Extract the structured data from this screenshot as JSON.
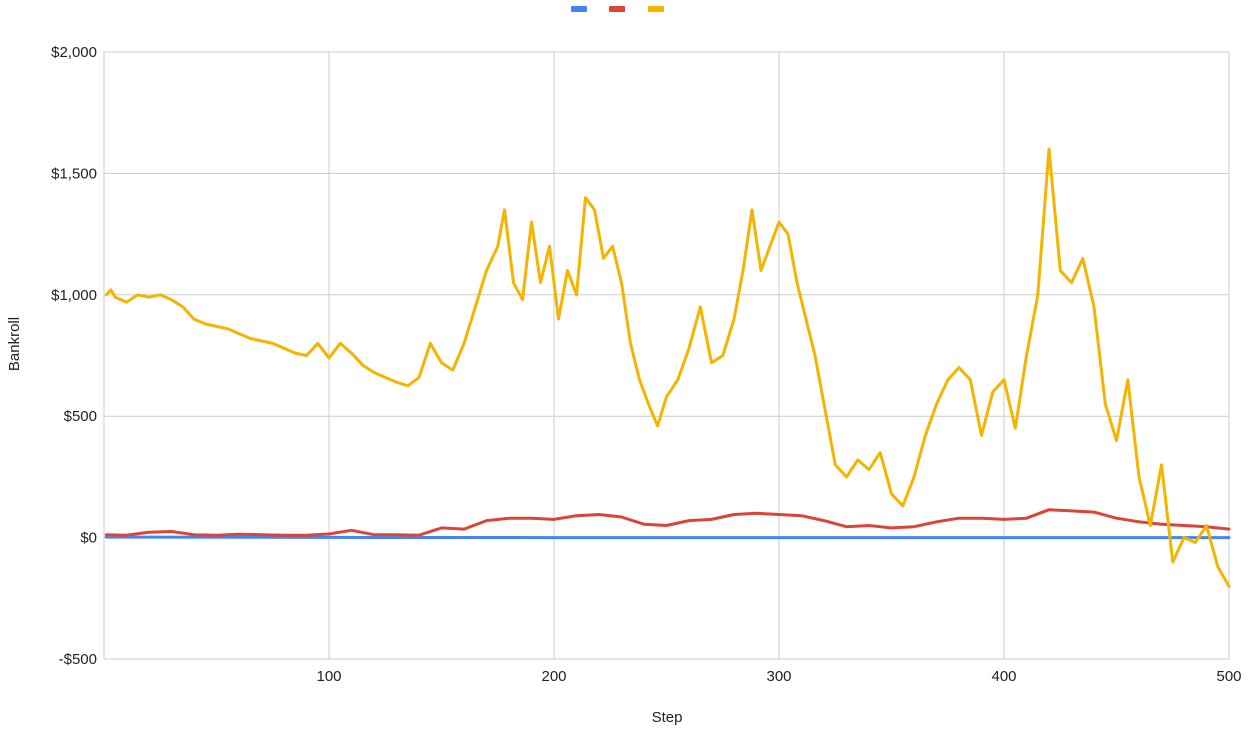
{
  "chart_data": {
    "type": "line",
    "title": "",
    "xlabel": "Step",
    "ylabel": "Bankroll",
    "xlim": [
      0,
      500
    ],
    "ylim": [
      -500,
      2000
    ],
    "x_ticks": [
      100,
      200,
      300,
      400,
      500
    ],
    "x_tick_labels": [
      "100",
      "200",
      "300",
      "400",
      "500"
    ],
    "y_ticks": [
      -500,
      0,
      500,
      1000,
      1500,
      2000
    ],
    "y_tick_labels": [
      "-$500",
      "$0",
      "$500",
      "$1,000",
      "$1,500",
      "$2,000"
    ],
    "grid": true,
    "legend_position": "top",
    "series": [
      {
        "color": "#4285f4",
        "x": [
          1,
          100,
          200,
          300,
          400,
          500
        ],
        "values": [
          2,
          1,
          0,
          0,
          0,
          0
        ]
      },
      {
        "color": "#db4437",
        "x": [
          1,
          10,
          20,
          30,
          40,
          50,
          60,
          70,
          80,
          90,
          100,
          110,
          120,
          130,
          140,
          150,
          160,
          170,
          180,
          190,
          200,
          210,
          220,
          230,
          240,
          250,
          260,
          270,
          280,
          290,
          300,
          310,
          320,
          330,
          340,
          350,
          360,
          370,
          380,
          390,
          400,
          410,
          420,
          430,
          440,
          450,
          460,
          470,
          480,
          490,
          500
        ],
        "values": [
          12,
          10,
          22,
          25,
          12,
          10,
          14,
          12,
          10,
          10,
          15,
          30,
          12,
          12,
          10,
          40,
          35,
          70,
          80,
          80,
          75,
          90,
          95,
          85,
          55,
          50,
          70,
          75,
          95,
          100,
          95,
          90,
          70,
          45,
          50,
          40,
          45,
          65,
          80,
          80,
          75,
          80,
          115,
          110,
          105,
          80,
          65,
          55,
          50,
          45,
          35
        ]
      },
      {
        "color": "#f4b400",
        "x": [
          1,
          3,
          5,
          10,
          15,
          20,
          25,
          30,
          35,
          40,
          45,
          50,
          55,
          60,
          65,
          70,
          75,
          80,
          85,
          90,
          95,
          100,
          105,
          110,
          115,
          120,
          125,
          130,
          135,
          140,
          145,
          150,
          155,
          160,
          165,
          170,
          175,
          178,
          182,
          186,
          190,
          194,
          198,
          202,
          206,
          210,
          214,
          218,
          222,
          226,
          230,
          234,
          238,
          242,
          246,
          250,
          255,
          260,
          265,
          270,
          275,
          280,
          284,
          288,
          292,
          296,
          300,
          304,
          308,
          312,
          316,
          320,
          325,
          330,
          335,
          340,
          345,
          350,
          355,
          360,
          365,
          370,
          375,
          380,
          385,
          390,
          395,
          400,
          405,
          410,
          415,
          420,
          425,
          430,
          435,
          440,
          445,
          450,
          455,
          460,
          465,
          470,
          475,
          480,
          485,
          490,
          495,
          500
        ],
        "values": [
          1000,
          1020,
          990,
          970,
          1000,
          990,
          1000,
          980,
          950,
          900,
          880,
          870,
          860,
          840,
          820,
          810,
          800,
          780,
          760,
          750,
          800,
          740,
          800,
          760,
          710,
          680,
          660,
          640,
          625,
          660,
          800,
          720,
          690,
          800,
          950,
          1100,
          1200,
          1350,
          1050,
          980,
          1300,
          1050,
          1200,
          900,
          1100,
          1000,
          1400,
          1350,
          1150,
          1200,
          1050,
          800,
          650,
          550,
          460,
          580,
          650,
          780,
          950,
          720,
          750,
          900,
          1100,
          1350,
          1100,
          1200,
          1300,
          1250,
          1050,
          900,
          750,
          550,
          300,
          250,
          320,
          280,
          350,
          180,
          130,
          250,
          420,
          550,
          650,
          700,
          650,
          420,
          600,
          650,
          450,
          750,
          1000,
          1600,
          1100,
          1050,
          1150,
          950,
          550,
          400,
          650,
          250,
          50,
          300,
          -100,
          0,
          -20,
          50,
          -120,
          -200
        ]
      }
    ]
  }
}
